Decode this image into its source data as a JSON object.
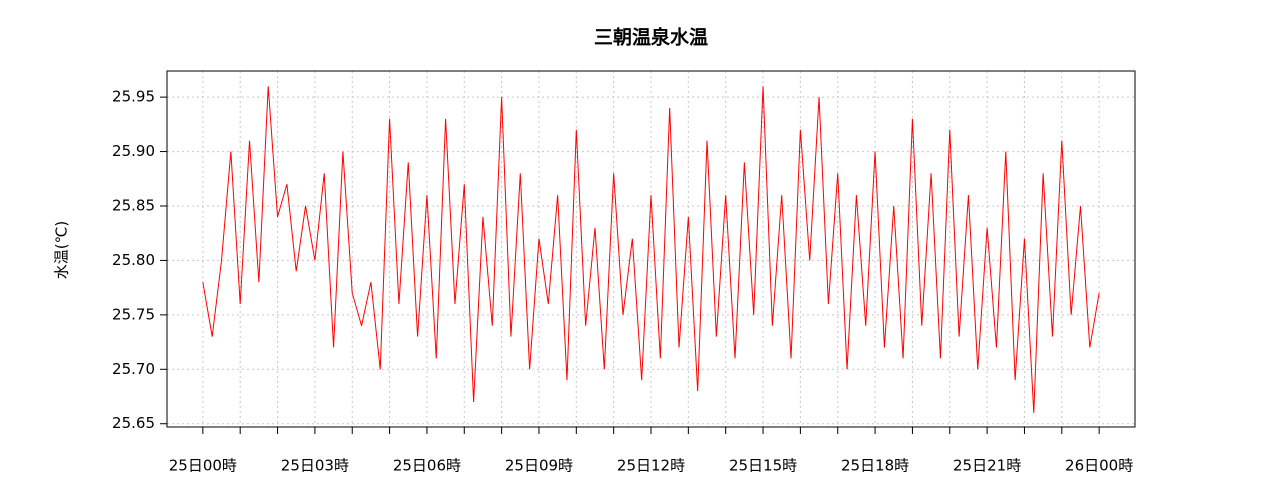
{
  "chart_data": {
    "type": "line",
    "title": "三朝温泉水温",
    "y_label": "水温(℃)",
    "x": [
      0,
      0.25,
      0.5,
      0.75,
      1,
      1.25,
      1.5,
      1.75,
      2,
      2.25,
      2.5,
      2.75,
      3,
      3.25,
      3.5,
      3.75,
      4,
      4.25,
      4.5,
      4.75,
      5,
      5.25,
      5.5,
      5.75,
      6,
      6.25,
      6.5,
      6.75,
      7,
      7.25,
      7.5,
      7.75,
      8,
      8.25,
      8.5,
      8.75,
      9,
      9.25,
      9.5,
      9.75,
      10,
      10.25,
      10.5,
      10.75,
      11,
      11.25,
      11.5,
      11.75,
      12,
      12.25,
      12.5,
      12.75,
      13,
      13.25,
      13.5,
      13.75,
      14,
      14.25,
      14.5,
      14.75,
      15,
      15.25,
      15.5,
      15.75,
      16,
      16.25,
      16.5,
      16.75,
      17,
      17.25,
      17.5,
      17.75,
      18,
      18.25,
      18.5,
      18.75,
      19,
      19.25,
      19.5,
      19.75,
      20,
      20.25,
      20.5,
      20.75,
      21,
      21.25,
      21.5,
      21.75,
      22,
      22.25,
      22.5,
      22.75,
      23,
      23.25,
      23.5,
      23.75,
      24
    ],
    "series": [
      {
        "color": "#ff0000",
        "values": [
          25.78,
          25.73,
          25.8,
          25.9,
          25.76,
          25.91,
          25.78,
          25.96,
          25.84,
          25.87,
          25.79,
          25.85,
          25.8,
          25.88,
          25.72,
          25.9,
          25.77,
          25.74,
          25.78,
          25.7,
          25.93,
          25.76,
          25.89,
          25.73,
          25.86,
          25.71,
          25.93,
          25.76,
          25.87,
          25.67,
          25.84,
          25.74,
          25.95,
          25.73,
          25.88,
          25.7,
          25.82,
          25.76,
          25.86,
          25.69,
          25.92,
          25.74,
          25.83,
          25.7,
          25.88,
          25.75,
          25.82,
          25.69,
          25.86,
          25.71,
          25.94,
          25.72,
          25.84,
          25.68,
          25.91,
          25.73,
          25.86,
          25.71,
          25.89,
          25.75,
          25.96,
          25.74,
          25.86,
          25.71,
          25.92,
          25.8,
          25.95,
          25.76,
          25.88,
          25.7,
          25.86,
          25.74,
          25.9,
          25.72,
          25.85,
          25.71,
          25.93,
          25.74,
          25.88,
          25.71,
          25.92,
          25.73,
          25.86,
          25.7,
          25.83,
          25.72,
          25.9,
          25.69,
          25.82,
          25.66,
          25.88,
          25.73,
          25.91,
          25.75,
          25.85,
          25.72,
          25.77
        ]
      }
    ],
    "xlim": [
      -0.96,
      24.96
    ],
    "ylim": [
      25.647,
      25.974
    ],
    "xticks": [
      {
        "value": 0,
        "label": "25日00時"
      },
      {
        "value": 3,
        "label": "25日03時"
      },
      {
        "value": 6,
        "label": "25日06時"
      },
      {
        "value": 9,
        "label": "25日09時"
      },
      {
        "value": 12,
        "label": "25日12時"
      },
      {
        "value": 15,
        "label": "25日15時"
      },
      {
        "value": 18,
        "label": "25日18時"
      },
      {
        "value": 21,
        "label": "25日21時"
      },
      {
        "value": 24,
        "label": "26日00時"
      }
    ],
    "x_minor_ticks": [
      0,
      1,
      2,
      3,
      4,
      5,
      6,
      7,
      8,
      9,
      10,
      11,
      12,
      13,
      14,
      15,
      16,
      17,
      18,
      19,
      20,
      21,
      22,
      23,
      24
    ],
    "yticks": [
      25.65,
      {
        "value": 25.7,
        "label": "25.70"
      },
      25.75,
      {
        "value": 25.8,
        "label": "25.80"
      },
      25.85,
      {
        "value": 25.9,
        "label": "25.90"
      },
      25.95
    ],
    "grid": true
  }
}
